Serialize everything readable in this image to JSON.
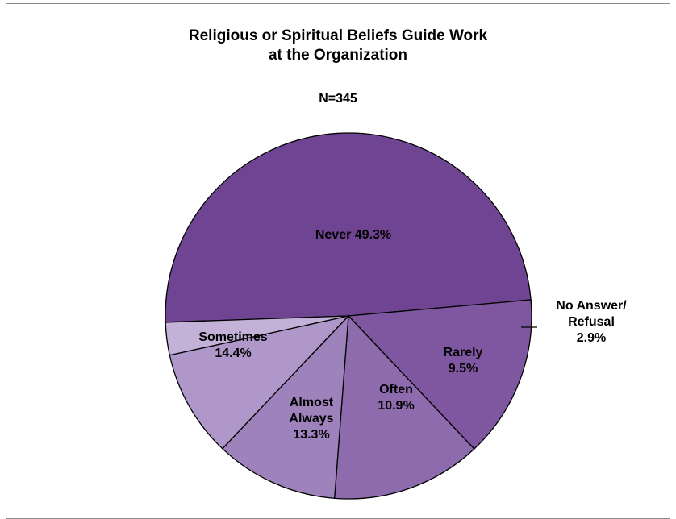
{
  "chart_data": {
    "type": "pie",
    "title_lines": [
      "Religious or Spiritual Beliefs Guide Work",
      "at the Organization"
    ],
    "subtitle": "N=345",
    "slices": [
      {
        "key": "never",
        "label_lines": [
          "Never 49.3%"
        ],
        "value": 49.3,
        "color": "#6f4593"
      },
      {
        "key": "sometimes",
        "label_lines": [
          "Sometimes",
          "14.4%"
        ],
        "value": 14.4,
        "color": "#7e57a0"
      },
      {
        "key": "almost-always",
        "label_lines": [
          "Almost",
          "Always",
          "13.3%"
        ],
        "value": 13.3,
        "color": "#8d6bad"
      },
      {
        "key": "often",
        "label_lines": [
          "Often",
          "10.9%"
        ],
        "value": 10.9,
        "color": "#9e82bb"
      },
      {
        "key": "rarely",
        "label_lines": [
          "Rarely",
          "9.5%"
        ],
        "value": 9.5,
        "color": "#af98c9"
      },
      {
        "key": "no-answer-refusal",
        "label_lines": [
          "No Answer/",
          "Refusal",
          "2.9%"
        ],
        "value": 2.9,
        "color": "#c3b1d8"
      }
    ]
  }
}
